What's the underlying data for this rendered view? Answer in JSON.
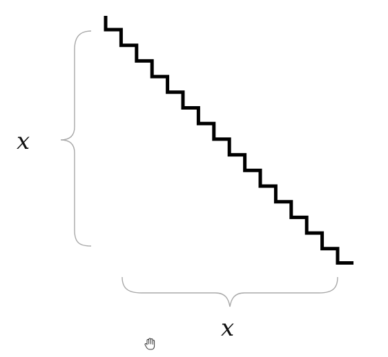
{
  "diagram": {
    "staircase": {
      "steps": 15,
      "color": "#000000"
    },
    "vertical_brace": {
      "label": "x",
      "color": "#a8a8a8"
    },
    "horizontal_brace": {
      "label": "x",
      "color": "#a8a8a8"
    }
  },
  "cursor": {
    "icon": "hand-cursor-icon"
  }
}
